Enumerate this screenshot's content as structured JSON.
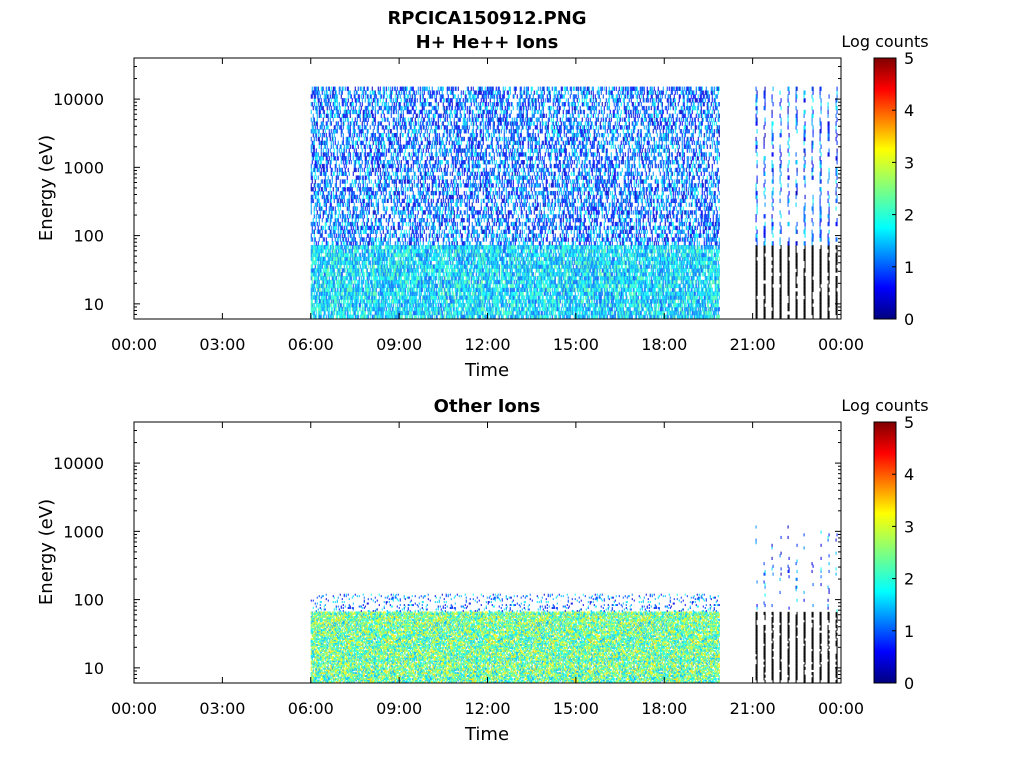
{
  "figure": {
    "title_line1": "RPCICA150912.PNG"
  },
  "chart_data": [
    {
      "type": "heatmap",
      "title": "H+ He++ Ions",
      "xlabel": "Time",
      "ylabel": "Energy (eV)",
      "x_ticks": [
        "00:00",
        "03:00",
        "06:00",
        "09:00",
        "12:00",
        "15:00",
        "18:00",
        "21:00",
        "00:00"
      ],
      "x_range_hours": [
        0,
        24
      ],
      "y_scale": "log",
      "y_ticks": [
        "10",
        "100",
        "1000",
        "10000"
      ],
      "y_range": [
        6,
        40000
      ],
      "colorbar": {
        "label": "Log counts",
        "ticks": [
          "0",
          "1",
          "2",
          "3",
          "4",
          "5"
        ],
        "range": [
          0,
          5
        ],
        "colormap": "jet"
      },
      "data_coverage": [
        {
          "start_hour": 6.0,
          "end_hour": 19.9,
          "e_max": 15000,
          "note_level_low_energy": 2.0
        },
        {
          "start_hour": 21.1,
          "end_hour": 23.9,
          "e_max": 15000,
          "bursty": true
        }
      ]
    },
    {
      "type": "heatmap",
      "title": "Other Ions",
      "xlabel": "Time",
      "ylabel": "Energy (eV)",
      "x_ticks": [
        "00:00",
        "03:00",
        "06:00",
        "09:00",
        "12:00",
        "15:00",
        "18:00",
        "21:00",
        "00:00"
      ],
      "x_range_hours": [
        0,
        24
      ],
      "y_scale": "log",
      "y_ticks": [
        "10",
        "100",
        "1000",
        "10000"
      ],
      "y_range": [
        6,
        40000
      ],
      "colorbar": {
        "label": "Log counts",
        "ticks": [
          "0",
          "1",
          "2",
          "3",
          "4",
          "5"
        ],
        "range": [
          0,
          5
        ],
        "colormap": "jet"
      },
      "data_coverage": [
        {
          "start_hour": 6.0,
          "end_hour": 19.9,
          "e_max": 120,
          "note_level_low_energy": 2.8
        },
        {
          "start_hour": 21.1,
          "end_hour": 23.9,
          "e_max": 1200,
          "bursty": true
        }
      ]
    }
  ]
}
